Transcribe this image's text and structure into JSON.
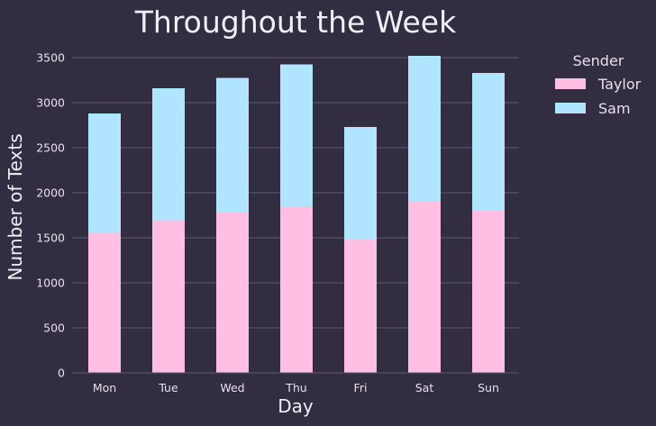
{
  "chart_data": {
    "type": "bar",
    "stacked": true,
    "title": "Throughout the Week",
    "xlabel": "Day",
    "ylabel": "Number of Texts",
    "categories": [
      "Mon",
      "Tue",
      "Wed",
      "Thu",
      "Fri",
      "Sat",
      "Sun"
    ],
    "series": [
      {
        "name": "Taylor",
        "color": "#ffbfe3",
        "values": [
          1555,
          1695,
          1785,
          1850,
          1485,
          1905,
          1800
        ]
      },
      {
        "name": "Sam",
        "color": "#b1e4ff",
        "values": [
          1325,
          1465,
          1490,
          1575,
          1245,
          1615,
          1530
        ]
      }
    ],
    "ylim": [
      0,
      3500
    ],
    "yticks": [
      0,
      500,
      1000,
      1500,
      2000,
      2500,
      3000,
      3500
    ],
    "grid": true,
    "legend": {
      "title": "Sender",
      "placement": "outside-right"
    }
  }
}
